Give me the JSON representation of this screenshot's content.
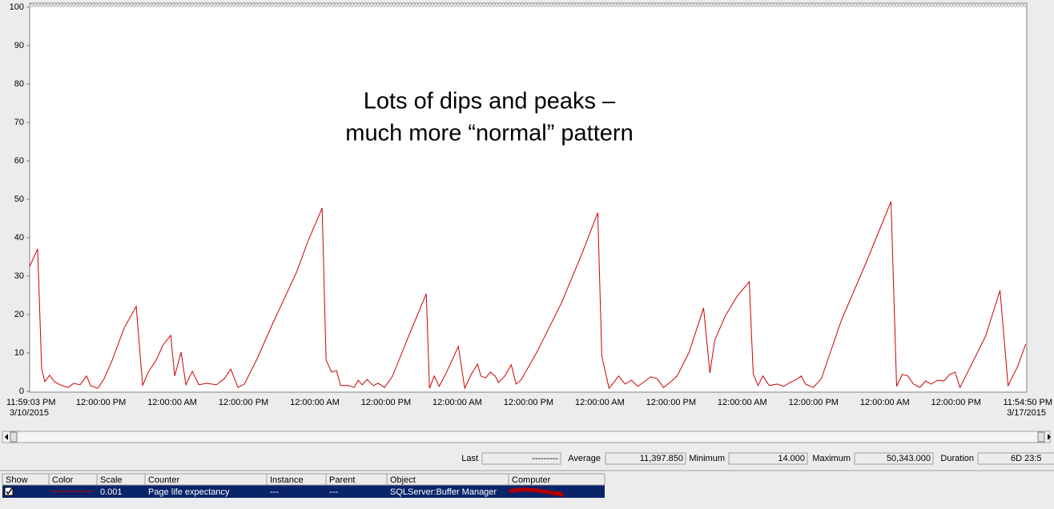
{
  "chart_data": {
    "type": "line",
    "annotation": [
      "Lots of dips and peaks –",
      "much more “normal” pattern"
    ],
    "x": [
      0,
      1.35,
      2.02,
      2.56,
      3.37,
      4.18,
      5.13,
      6.48,
      7.42,
      8.5,
      9.58,
      10.26,
      11.47,
      12.55,
      13.9,
      15.92,
      17.95,
      19.03,
      19.97,
      21.32,
      22.4,
      23.75,
      24.43,
      25.51,
      26.32,
      27.4,
      28.48,
      29.82,
      31.44,
      32.79,
      33.87,
      35.09,
      36.17,
      38.19,
      40.89,
      44.94,
      46.96,
      49.26,
      49.93,
      50.88,
      51.69,
      52.36,
      53.71,
      54.66,
      55.33,
      56.01,
      56.82,
      57.89,
      58.7,
      59.78,
      61.13,
      63.83,
      66.8,
      67.34,
      68.15,
      68.96,
      69.91,
      71.26,
      72.2,
      73.28,
      74.36,
      75.44,
      75.98,
      76.79,
      77.6,
      78.41,
      78.95,
      80.03,
      81.11,
      81.92,
      82.73,
      85.43,
      89.47,
      92.85,
      95.68,
      96.36,
      97.57,
      98.38,
      99.19,
      100.27,
      101.35,
      102.43,
      103.51,
      104.59,
      105.67,
      106.75,
      107.83,
      109.04,
      111.07,
      113.5,
      114.57,
      115.38,
      117.14,
      119.16,
      121.19,
      121.86,
      122.67,
      123.48,
      124.56,
      125.91,
      126.99,
      128.07,
      129.15,
      129.96,
      130.63,
      131.98,
      133.33,
      136.71,
      140.76,
      145.07,
      146.01,
      146.96,
      147.91,
      148.85,
      149.93,
      150.88,
      151.82,
      152.9,
      153.98,
      154.93,
      155.87,
      156.68,
      158.3,
      161.0,
      163.43,
      164.78,
      166.4,
      167.75
    ],
    "values": [
      32.5,
      37.1,
      6.0,
      2.5,
      4.2,
      2.5,
      1.7,
      1.0,
      2.1,
      1.7,
      4.0,
      1.5,
      0.8,
      3.3,
      8.1,
      16.5,
      22.1,
      1.5,
      5.0,
      8.1,
      11.9,
      14.6,
      4.0,
      10.2,
      1.7,
      5.2,
      1.7,
      2.1,
      1.7,
      3.3,
      5.8,
      1.0,
      1.9,
      8.1,
      17.5,
      31.0,
      39.4,
      47.7,
      8.1,
      5.0,
      5.4,
      1.5,
      1.5,
      1.0,
      2.9,
      1.7,
      3.1,
      1.5,
      2.1,
      1.0,
      4.0,
      14.4,
      25.4,
      0.8,
      4.0,
      1.3,
      4.0,
      8.5,
      11.7,
      0.8,
      4.4,
      7.1,
      4.0,
      3.5,
      5.0,
      4.0,
      2.3,
      4.0,
      6.9,
      1.9,
      2.9,
      10.2,
      22.7,
      35.2,
      46.5,
      9.2,
      0.8,
      2.3,
      4.0,
      1.9,
      2.9,
      1.3,
      2.5,
      3.8,
      3.3,
      1.0,
      2.3,
      4.0,
      10.2,
      21.7,
      4.8,
      13.3,
      19.6,
      24.8,
      28.5,
      4.6,
      1.5,
      4.0,
      1.5,
      1.9,
      1.3,
      2.3,
      3.1,
      4.0,
      1.9,
      1.0,
      3.3,
      18.5,
      33.1,
      49.4,
      1.3,
      4.4,
      4.0,
      1.9,
      1.0,
      2.7,
      1.9,
      2.9,
      2.7,
      4.4,
      5.0,
      1.0,
      6.0,
      14.4,
      26.3,
      1.5,
      6.5,
      12.3
    ],
    "color": "#cc0000",
    "xlim": [
      0,
      167.93
    ],
    "xticks": [
      {
        "value": 0,
        "label": "11:59:03 PM"
      },
      {
        "value": 12.02,
        "label": "12:00:00 PM"
      },
      {
        "value": 24.02,
        "label": "12:00:00 AM"
      },
      {
        "value": 36.02,
        "label": "12:00:00 PM"
      },
      {
        "value": 48.02,
        "label": "12:00:00 AM"
      },
      {
        "value": 60.02,
        "label": "12:00:00 PM"
      },
      {
        "value": 72.02,
        "label": "12:00:00 AM"
      },
      {
        "value": 84.02,
        "label": "12:00:00 PM"
      },
      {
        "value": 96.02,
        "label": "12:00:00 AM"
      },
      {
        "value": 108.02,
        "label": "12:00:00 PM"
      },
      {
        "value": 120.02,
        "label": "12:00:00 AM"
      },
      {
        "value": 132.02,
        "label": "12:00:00 PM"
      },
      {
        "value": 144.02,
        "label": "12:00:00 AM"
      },
      {
        "value": 156.02,
        "label": "12:00:00 PM"
      },
      {
        "value": 167.93,
        "label": "11:54:50 PM"
      }
    ],
    "start_date": "3/10/2015",
    "end_date": "3/17/2015",
    "ylim": [
      0,
      100
    ],
    "yticks": [
      0,
      10,
      20,
      30,
      40,
      50,
      60,
      70,
      80,
      90,
      100
    ],
    "grid": false
  },
  "stats": [
    {
      "label": "Last",
      "value": "---------"
    },
    {
      "label": "Average",
      "value": "11,397.850"
    },
    {
      "label": "Minimum",
      "value": "14.000"
    },
    {
      "label": "Maximum",
      "value": "50,343.000"
    },
    {
      "label": "Duration",
      "value": "6D 23:5"
    }
  ],
  "counters": {
    "columns": [
      "Show",
      "Color",
      "Scale",
      "Counter",
      "Instance",
      "Parent",
      "Object",
      "Computer"
    ],
    "rows": [
      {
        "scale": "0.001",
        "counter": "Page life expectancy",
        "instance": "---",
        "parent": "---",
        "object": "SQLServer:Buffer Manager"
      }
    ]
  }
}
